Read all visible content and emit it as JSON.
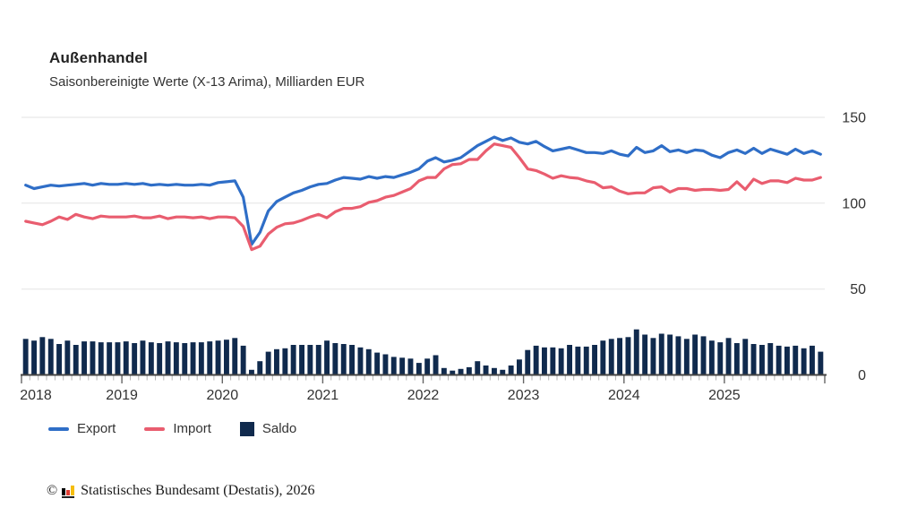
{
  "chart_data": {
    "type": "line+bar",
    "title": "Außenhandel",
    "subtitle": "Saisonbereinigte Werte (X-13 Arima), Milliarden EUR",
    "unit": "Milliarden EUR",
    "frequency": "monthly",
    "x_start": "2018-01",
    "x_end": "2025-12",
    "n_points": 96,
    "x_tick_labels": [
      "2018",
      "2019",
      "2020",
      "2021",
      "2022",
      "2023",
      "2024",
      "2025"
    ],
    "y_ticks": [
      0,
      50,
      100,
      150
    ],
    "ylim": [
      0,
      150
    ],
    "grid": "horizontal",
    "grid_color": "#e3e3e3",
    "y_axis_position": "right",
    "legend_position": "bottom-left",
    "series": [
      {
        "name": "Export",
        "type": "line",
        "color": "#2f6ec7",
        "values": [
          110.5,
          108.5,
          109.5,
          110.5,
          110,
          110.5,
          111,
          111.5,
          110.5,
          111.5,
          111,
          111,
          111.5,
          111,
          111.5,
          110.5,
          111,
          110.5,
          111,
          110.5,
          110.5,
          111,
          110.5,
          112,
          112.5,
          113,
          103.5,
          76,
          83,
          95.5,
          101,
          103.5,
          106,
          107.5,
          109.5,
          111,
          111.5,
          113.5,
          115,
          114.5,
          114,
          115.5,
          114.5,
          115.5,
          115,
          116.5,
          118,
          120,
          124.5,
          126.5,
          124,
          125,
          126.5,
          130,
          133.5,
          136,
          138.5,
          136.5,
          138,
          135.5,
          134.5,
          136,
          133,
          130.5,
          131.5,
          132.5,
          131,
          129.5,
          129.5,
          129,
          130.5,
          128.5,
          127.5,
          132.5,
          129.5,
          130.5,
          133.5,
          130,
          131,
          129.5,
          131,
          130.5,
          128,
          126.5,
          129.5,
          131,
          129,
          132,
          129,
          131.5,
          130,
          128.5,
          131.5,
          129,
          130.5,
          128.5
        ]
      },
      {
        "name": "Import",
        "type": "line",
        "color": "#e95d6f",
        "values": [
          89.5,
          88.5,
          87.5,
          89.5,
          92,
          90.5,
          93.5,
          92,
          91,
          92.5,
          92,
          92,
          92,
          92.5,
          91.5,
          91.5,
          92.5,
          91,
          92,
          92,
          91.5,
          92,
          91,
          92,
          92,
          91.5,
          86.5,
          73,
          75,
          82,
          86,
          88,
          88.5,
          90,
          92,
          93.5,
          91.5,
          95,
          97,
          97,
          98,
          100.5,
          101.5,
          103.5,
          104.5,
          106.5,
          108.5,
          113,
          115,
          115,
          120,
          122.5,
          123,
          125.5,
          125.5,
          130.5,
          134.5,
          133.5,
          132.5,
          126.5,
          120,
          119,
          117,
          114.5,
          116,
          115,
          114.5,
          113,
          112,
          109,
          109.5,
          107,
          105.5,
          106,
          106,
          109,
          109.5,
          106.5,
          108.5,
          108.5,
          107.5,
          108,
          108,
          107.5,
          108,
          112.5,
          108,
          114,
          111.5,
          113,
          113,
          112,
          114.5,
          113.5,
          113.5,
          115
        ]
      },
      {
        "name": "Saldo",
        "type": "bar",
        "color": "#102a4d",
        "values": [
          21,
          20,
          22,
          21,
          18,
          20,
          17.5,
          19.5,
          19.5,
          19,
          19,
          19,
          19.5,
          18.5,
          20,
          19,
          18.5,
          19.5,
          19,
          18.5,
          19,
          19,
          19.5,
          20,
          20.5,
          21.5,
          17,
          3,
          8,
          13.5,
          15,
          15.5,
          17.5,
          17.5,
          17.5,
          17.5,
          20,
          18.5,
          18,
          17.5,
          16,
          15,
          13,
          12,
          10.5,
          10,
          9.5,
          7,
          9.5,
          11.5,
          4,
          2.5,
          3.5,
          4.5,
          8,
          5.5,
          4,
          3,
          5.5,
          9,
          14.5,
          17,
          16,
          16,
          15.5,
          17.5,
          16.5,
          16.5,
          17.5,
          20,
          21,
          21.5,
          22,
          26.5,
          23.5,
          21.5,
          24,
          23.5,
          22.5,
          21,
          23.5,
          22.5,
          20,
          19,
          21.5,
          18.5,
          21,
          18,
          17.5,
          18.5,
          17,
          16.5,
          17,
          15.5,
          17,
          13.5
        ]
      }
    ]
  },
  "footer": {
    "copyright_symbol": "©",
    "publisher": "Statistisches Bundesamt (Destatis), 2026",
    "logo_colors": [
      "#000000",
      "#e03c31",
      "#f5bd0c"
    ]
  }
}
